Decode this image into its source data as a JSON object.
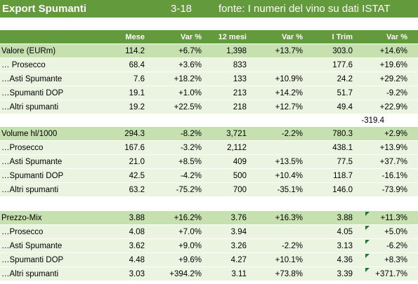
{
  "banner": {
    "title": "Export Spumanti",
    "period": "3-18",
    "source": "fonte: I numeri del vino su dati ISTAT"
  },
  "table": {
    "headers": [
      "",
      "Mese",
      "Var %",
      "12 mesi",
      "Var %",
      "I Trim",
      "Var %"
    ],
    "valore": {
      "main": [
        "Valore (EURm)",
        "114.2",
        "+6.7%",
        "1,398",
        "+13.7%",
        "303.0",
        "+14.6%"
      ],
      "rows": [
        [
          "… Prosecco",
          "68.4",
          "+3.6%",
          "833",
          "",
          "177.6",
          "+19.6%"
        ],
        [
          "…Asti Spumante",
          "7.6",
          "+18.2%",
          "133",
          "+10.9%",
          "24.2",
          "+29.2%"
        ],
        [
          "…Spumanti DOP",
          "19.1",
          "+1.0%",
          "213",
          "+14.2%",
          "51.7",
          "-9.2%"
        ],
        [
          "…Altri spumanti",
          "19.2",
          "+22.5%",
          "218",
          "+12.7%",
          "49.4",
          "+22.9%"
        ]
      ],
      "note": "-319.4"
    },
    "volume": {
      "main": [
        "Volume hl/1000",
        "294.3",
        "-8.2%",
        "3,721",
        "-2.2%",
        "780.3",
        "+2.9%"
      ],
      "rows": [
        [
          "…Prosecco",
          "167.6",
          "-3.2%",
          "2,112",
          "",
          "438.1",
          "+13.9%"
        ],
        [
          "…Asti Spumante",
          "21.0",
          "+8.5%",
          "409",
          "+13.5%",
          "77.5",
          "+37.7%"
        ],
        [
          "…Spumanti DOP",
          "42.5",
          "-4.2%",
          "500",
          "+10.4%",
          "118.7",
          "-16.1%"
        ],
        [
          "…Altri spumanti",
          "63.2",
          "-75.2%",
          "700",
          "-35.1%",
          "146.0",
          "-73.9%"
        ]
      ]
    },
    "prezzo": {
      "main": [
        "Prezzo-Mix",
        "3.88",
        "+16.2%",
        "3.76",
        "+16.3%",
        "3.88",
        "+11.3%"
      ],
      "rows": [
        [
          "…Prosecco",
          "4.08",
          "+7.0%",
          "3.94",
          "",
          "4.05",
          "+5.0%"
        ],
        [
          "…Asti Spumante",
          "3.62",
          "+9.0%",
          "3.26",
          "-2.2%",
          "3.13",
          "-6.2%"
        ],
        [
          "…Spumanti DOP",
          "4.48",
          "+9.6%",
          "4.27",
          "+10.1%",
          "4.36",
          "+8.3%"
        ],
        [
          "…Altri spumanti",
          "3.03",
          "+394.2%",
          "3.11",
          "+73.8%",
          "3.39",
          "+371.7%"
        ]
      ]
    }
  },
  "colors": {
    "header_green": "#639a3c",
    "main_row": "#c6e0b0",
    "sub_row": "#ebf3e1",
    "marker": "#1f7a2f"
  }
}
